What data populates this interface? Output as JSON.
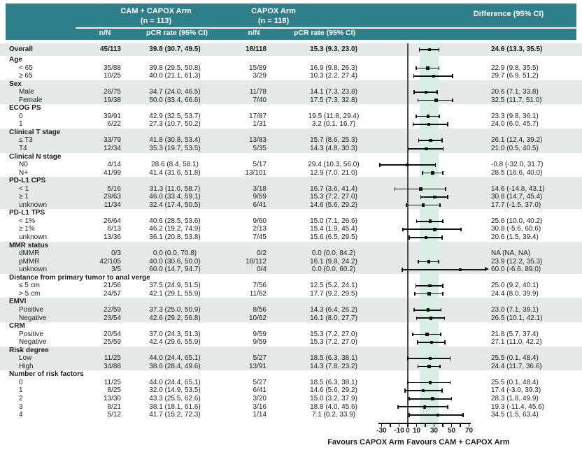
{
  "colors": {
    "teal": "#2f7f8b",
    "row_shade": "#e7e8e8",
    "ci_band": "#d9eee4",
    "zero_line": "#4d4d4d"
  },
  "header": {
    "arm1_title": "CAM + CAPOX Arm",
    "arm1_n": "(n = 113)",
    "arm2_title": "CAPOX Arm",
    "arm2_n": "(n = 118)",
    "diff_title": "Difference (95% CI)",
    "col_nN_1": "n/N",
    "col_pcr_1": "pCR rate (95% CI)",
    "col_nN_2": "n/N",
    "col_pcr_2": "pCR rate (95% CI)"
  },
  "chart_data": {
    "type": "scatter",
    "subtype": "forest-plot",
    "xlim": [
      -37,
      98
    ],
    "x_ticks": [
      [
        -30,
        "-30"
      ],
      [
        -20,
        ""
      ],
      [
        -10,
        "-10"
      ],
      [
        0,
        "0"
      ],
      [
        10,
        "10"
      ],
      [
        20,
        ""
      ],
      [
        30,
        "30"
      ],
      [
        40,
        ""
      ],
      [
        50,
        "50"
      ],
      [
        60,
        ""
      ],
      [
        70,
        "70"
      ]
    ],
    "shaded_band": [
      13.3,
      35.5
    ],
    "favours_left": "Favours CAPOX Arm",
    "favours_right": "Favours CAM + CAPOX Arm",
    "groups": [
      {
        "label": null,
        "shaded": true,
        "rows": [
          {
            "label": "Overall",
            "n1": "45/113",
            "pcr1": "39.8 (30.7, 49.5)",
            "n2": "18/118",
            "pcr2": "15.3 (9.3, 23.0)",
            "diff": "24.6 (13.3, 35.5)",
            "est": 24.6,
            "lo": 13.3,
            "hi": 35.5
          }
        ]
      },
      {
        "label": "Age",
        "shaded": false,
        "rows": [
          {
            "label": "< 65",
            "n1": "35/88",
            "pcr1": "39.8 (29.5, 50.8)",
            "n2": "15/89",
            "pcr2": "16.9 (9.8, 26.3)",
            "diff": "22.9 (9.8, 35.5)",
            "est": 22.9,
            "lo": 9.8,
            "hi": 35.5
          },
          {
            "label": "≥ 65",
            "n1": "10/25",
            "pcr1": "40.0 (21.1, 61.3)",
            "n2": "3/29",
            "pcr2": "10.3 (2.2, 27.4)",
            "diff": "29.7 (6.9, 51.2)",
            "est": 29.7,
            "lo": 6.9,
            "hi": 51.2
          }
        ]
      },
      {
        "label": "Sex",
        "shaded": true,
        "rows": [
          {
            "label": "Male",
            "n1": "26/75",
            "pcr1": "34.7 (24.0, 46.5)",
            "n2": "11/78",
            "pcr2": "14.1 (7.3, 23.8)",
            "diff": "20.6 (7.1, 33.8)",
            "est": 20.6,
            "lo": 7.1,
            "hi": 33.8
          },
          {
            "label": "Female",
            "n1": "19/38",
            "pcr1": "50.0 (33.4, 66.6)",
            "n2": "7/40",
            "pcr2": "17.5 (7.3, 32.8)",
            "diff": "32.5 (11.7, 51.0)",
            "est": 32.5,
            "lo": 11.7,
            "hi": 51.0
          }
        ]
      },
      {
        "label": "ECOG PS",
        "shaded": false,
        "rows": [
          {
            "label": "0",
            "n1": "39/91",
            "pcr1": "42.9 (32.5, 53.7)",
            "n2": "17/87",
            "pcr2": "19.5 (11.8, 29.4)",
            "diff": "23.3 (9.8, 36.1)",
            "est": 23.3,
            "lo": 9.8,
            "hi": 36.1
          },
          {
            "label": "1",
            "n1": "6/22",
            "pcr1": "27.3 (10.7, 50.2)",
            "n2": "1/31",
            "pcr2": "3.2 (0.1, 16.7)",
            "diff": "24.0 (6.0, 45.7)",
            "est": 24.0,
            "lo": 6.0,
            "hi": 45.7
          }
        ]
      },
      {
        "label": "Clinical T stage",
        "shaded": true,
        "rows": [
          {
            "label": "≤ T3",
            "n1": "33/79",
            "pcr1": "41.8 (30.8, 53.4)",
            "n2": "13/83",
            "pcr2": "15.7 (8.6, 25.3)",
            "diff": "26.1 (12.4, 39.2)",
            "est": 26.1,
            "lo": 12.4,
            "hi": 39.2
          },
          {
            "label": "T4",
            "n1": "12/34",
            "pcr1": "35.3 (19.7, 53.5)",
            "n2": "5/35",
            "pcr2": "14.3 (4.8, 30.3)",
            "diff": "21.0 (0.5, 40.5)",
            "est": 21.0,
            "lo": 0.5,
            "hi": 40.5
          }
        ]
      },
      {
        "label": "Clinical N stage",
        "shaded": false,
        "rows": [
          {
            "label": "N0",
            "n1": "4/14",
            "pcr1": "28.6 (8.4, 58.1)",
            "n2": "5/17",
            "pcr2": "29.4 (10.3, 56.0)",
            "diff": "-0.8 (-32.0, 31.7)",
            "est": -0.8,
            "lo": -32.0,
            "hi": 31.7
          },
          {
            "label": "N+",
            "n1": "41/99",
            "pcr1": "41.4 (31.6, 51.8)",
            "n2": "13/101",
            "pcr2": "12.9 (7.0, 21.0)",
            "diff": "28.5 (16.6, 40.0)",
            "est": 28.5,
            "lo": 16.6,
            "hi": 40.0
          }
        ]
      },
      {
        "label": "PD-L1 CPS",
        "shaded": true,
        "rows": [
          {
            "label": "< 1",
            "n1": "5/16",
            "pcr1": "31.3 (11.0, 58.7)",
            "n2": "3/18",
            "pcr2": "16.7 (3.6, 41.4)",
            "diff": "14.6 (-14.8, 43.1)",
            "est": 14.6,
            "lo": -14.8,
            "hi": 43.1
          },
          {
            "label": "≥ 1",
            "n1": "29/63",
            "pcr1": "46.0 (33.4, 59.1)",
            "n2": "9/59",
            "pcr2": "15.3 (7.2, 27.0)",
            "diff": "30.8 (14.7, 45.4)",
            "est": 30.8,
            "lo": 14.7,
            "hi": 45.4
          },
          {
            "label": "unknown",
            "n1": "11/34",
            "pcr1": "32.4 (17.4, 50.5)",
            "n2": "6/41",
            "pcr2": "14.6 (5.6, 29.2)",
            "diff": "17.7 (-1.5, 37.0)",
            "est": 17.7,
            "lo": -1.5,
            "hi": 37.0
          }
        ]
      },
      {
        "label": "PD-L1 TPS",
        "shaded": false,
        "rows": [
          {
            "label": "< 1%",
            "n1": "26/64",
            "pcr1": "40.6 (28.5, 53.6)",
            "n2": "9/60",
            "pcr2": "15.0 (7.1, 26.6)",
            "diff": "25.6 (10.0, 40.2)",
            "est": 25.6,
            "lo": 10.0,
            "hi": 40.2
          },
          {
            "label": "≥ 1%",
            "n1": "6/13",
            "pcr1": "46.2 (19.2, 74.9)",
            "n2": "2/13",
            "pcr2": "15.4 (1.9, 45.4)",
            "diff": "30.8 (-5.6, 60.6)",
            "est": 30.8,
            "lo": -5.6,
            "hi": 60.6
          },
          {
            "label": "unknown",
            "n1": "13/36",
            "pcr1": "36.1 (20.8, 53.8)",
            "n2": "7/45",
            "pcr2": "15.6 (6.5, 29.5)",
            "diff": "20.6 (1.5, 39.4)",
            "est": 20.6,
            "lo": 1.5,
            "hi": 39.4
          }
        ]
      },
      {
        "label": "MMR status",
        "shaded": true,
        "rows": [
          {
            "label": "dMMR",
            "n1": "0/3",
            "pcr1": "0.0 (0.0, 70.8)",
            "n2": "0/2",
            "pcr2": "0.0 (0.0, 84.2)",
            "diff": "NA (NA, NA)"
          },
          {
            "label": "pMMR",
            "n1": "42/105",
            "pcr1": "40.0 (30.6, 50.0)",
            "n2": "18/112",
            "pcr2": "16.1 (9.8, 24.2)",
            "diff": "23.9 (12.2, 35.3)",
            "est": 23.9,
            "lo": 12.2,
            "hi": 35.3
          },
          {
            "label": "unknown",
            "n1": "3/5",
            "pcr1": "60.0 (14.7, 94.7)",
            "n2": "0/4",
            "pcr2": "0.0 (0.0, 60.2)",
            "diff": "60.0 (-6.6, 89.0)",
            "est": 60.0,
            "lo": -6.6,
            "hi": 89.0,
            "arrow": true
          }
        ]
      },
      {
        "label": "Distance from primary tumor to anal verge",
        "shaded": false,
        "rows": [
          {
            "label": "≤ 5 cm",
            "n1": "21/56",
            "pcr1": "37.5 (24.9, 51.5)",
            "n2": "7/56",
            "pcr2": "12.5 (5.2, 24.1)",
            "diff": "25.0 (9.2, 40.1)",
            "est": 25.0,
            "lo": 9.2,
            "hi": 40.1
          },
          {
            "label": "> 5 cm",
            "n1": "24/57",
            "pcr1": "42.1 (29.1, 55.9)",
            "n2": "11/62",
            "pcr2": "17.7 (9.2, 29.5)",
            "diff": "24.4 (8.0, 39.9)",
            "est": 24.4,
            "lo": 8.0,
            "hi": 39.9
          }
        ]
      },
      {
        "label": "EMVI",
        "shaded": true,
        "rows": [
          {
            "label": "Positive",
            "n1": "22/59",
            "pcr1": "37.3 (25.0, 50.9)",
            "n2": "8/56",
            "pcr2": "14.3 (6.4, 26.2)",
            "diff": "23.0 (7.1, 38.1)",
            "est": 23.0,
            "lo": 7.1,
            "hi": 38.1
          },
          {
            "label": "Negative",
            "n1": "23/54",
            "pcr1": "42.6 (29.2, 56.8)",
            "n2": "10/62",
            "pcr2": "16.1 (8.0, 27.7)",
            "diff": "26.5 (10.1, 42.1)",
            "est": 26.5,
            "lo": 10.1,
            "hi": 42.1
          }
        ]
      },
      {
        "label": "CRM",
        "shaded": false,
        "rows": [
          {
            "label": "Positive",
            "n1": "20/54",
            "pcr1": "37.0 (24.3, 51.3)",
            "n2": "9/59",
            "pcr2": "15.3 (7.2, 27.0)",
            "diff": "21.8 (5.7, 37.4)",
            "est": 21.8,
            "lo": 5.7,
            "hi": 37.4
          },
          {
            "label": "Negative",
            "n1": "25/59",
            "pcr1": "42.4 (29.6, 55.9)",
            "n2": "9/59",
            "pcr2": "15.3 (7.2, 27.0)",
            "diff": "27.1 (11.0, 42.2)",
            "est": 27.1,
            "lo": 11.0,
            "hi": 42.2
          }
        ]
      },
      {
        "label": "Risk degree",
        "shaded": true,
        "rows": [
          {
            "label": "Low",
            "n1": "11/25",
            "pcr1": "44.0 (24.4, 65.1)",
            "n2": "5/27",
            "pcr2": "18.5 (6.3, 38.1)",
            "diff": "25.5 (0.1, 48.4)",
            "est": 25.5,
            "lo": 0.1,
            "hi": 48.4
          },
          {
            "label": "High",
            "n1": "34/88",
            "pcr1": "38.6 (28.4, 49.6)",
            "n2": "13/91",
            "pcr2": "14.3 (7.8, 23.2)",
            "diff": "24.4 (11.7, 36.6)",
            "est": 24.4,
            "lo": 11.7,
            "hi": 36.6
          }
        ]
      },
      {
        "label": "Number of risk factors",
        "shaded": false,
        "rows": [
          {
            "label": "0",
            "n1": "11/25",
            "pcr1": "44.0 (24.4, 65.1)",
            "n2": "5/27",
            "pcr2": "18.5 (6.3, 38.1)",
            "diff": "25.5 (0.1, 48.4)",
            "est": 25.5,
            "lo": 0.1,
            "hi": 48.4
          },
          {
            "label": "1",
            "n1": "8/25",
            "pcr1": "32.0 (14.9, 53.5)",
            "n2": "6/41",
            "pcr2": "14.6 (5.6, 29.2)",
            "diff": "17.4 (-3.0, 39.3)",
            "est": 17.4,
            "lo": -3.0,
            "hi": 39.3
          },
          {
            "label": "2",
            "n1": "13/30",
            "pcr1": "43.3 (25.5, 62.6)",
            "n2": "3/20",
            "pcr2": "15.0 (3.2, 37.9)",
            "diff": "28.3 (1.8, 49.9)",
            "est": 28.3,
            "lo": 1.8,
            "hi": 49.9
          },
          {
            "label": "3",
            "n1": "8/21",
            "pcr1": "38.1 (18.1, 61.6)",
            "n2": "3/16",
            "pcr2": "18.8 (4.0, 45.6)",
            "diff": "19.3 (-11.4, 45.6)",
            "est": 19.3,
            "lo": -11.4,
            "hi": 45.6
          },
          {
            "label": "4",
            "n1": "5/12",
            "pcr1": "41.7 (15.2, 72.3)",
            "n2": "1/14",
            "pcr2": "7.1 (0.2, 33.9)",
            "diff": "34.5 (1.5, 63.4)",
            "est": 34.5,
            "lo": 1.5,
            "hi": 63.4
          }
        ]
      }
    ]
  }
}
